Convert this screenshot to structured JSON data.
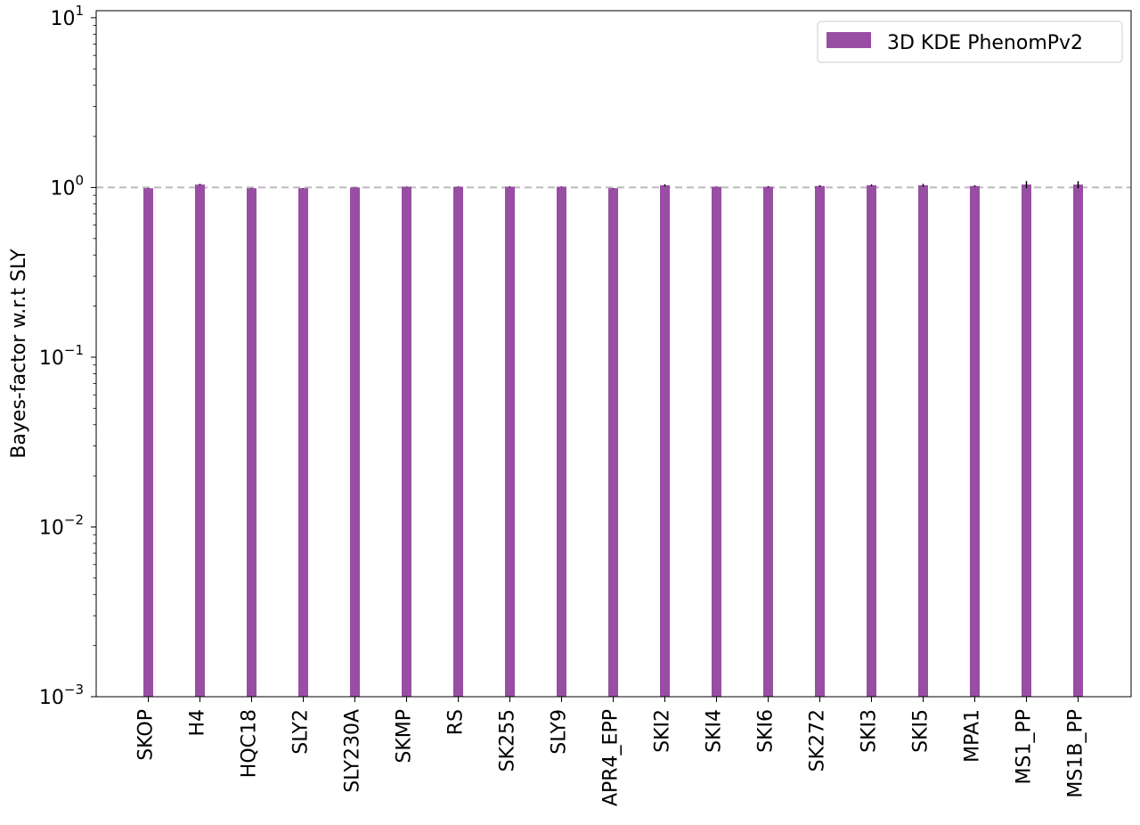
{
  "chart_data": {
    "type": "bar",
    "yscale": "log",
    "ylim": [
      0.001,
      11
    ],
    "ylabel": "Bayes-factor w.r.t SLY",
    "xlabel": "",
    "title": "",
    "yticks": [
      {
        "value": 0.001,
        "base": "10",
        "exp": "−3"
      },
      {
        "value": 0.01,
        "base": "10",
        "exp": "−2"
      },
      {
        "value": 0.1,
        "base": "10",
        "exp": "−1"
      },
      {
        "value": 1,
        "base": "10",
        "exp": "0"
      },
      {
        "value": 10,
        "base": "10",
        "exp": "1"
      }
    ],
    "reference_line": {
      "value": 1,
      "style": "dashed",
      "color": "#bbbbbb"
    },
    "legend": {
      "position": "top-right"
    },
    "categories": [
      "SKOP",
      "H4",
      "HQC18",
      "SLY2",
      "SLY230A",
      "SKMP",
      "RS",
      "SK255",
      "SLY9",
      "APR4_EPP",
      "SKI2",
      "SKI4",
      "SKI6",
      "SK272",
      "SKI3",
      "SKI5",
      "MPA1",
      "MS1_PP",
      "MS1B_PP"
    ],
    "series": [
      {
        "name": "3D KDE PhenomPv2",
        "color": "#984ea3",
        "values": [
          0.99,
          1.04,
          0.99,
          0.99,
          1.0,
          1.01,
          1.01,
          1.01,
          1.01,
          0.99,
          1.03,
          1.01,
          1.01,
          1.02,
          1.03,
          1.03,
          1.02,
          1.04,
          1.04
        ],
        "errors": [
          0.003,
          0.01,
          0.003,
          0.003,
          0.003,
          0.004,
          0.004,
          0.006,
          0.004,
          0.003,
          0.015,
          0.004,
          0.008,
          0.012,
          0.013,
          0.02,
          0.01,
          0.05,
          0.05
        ]
      }
    ]
  }
}
